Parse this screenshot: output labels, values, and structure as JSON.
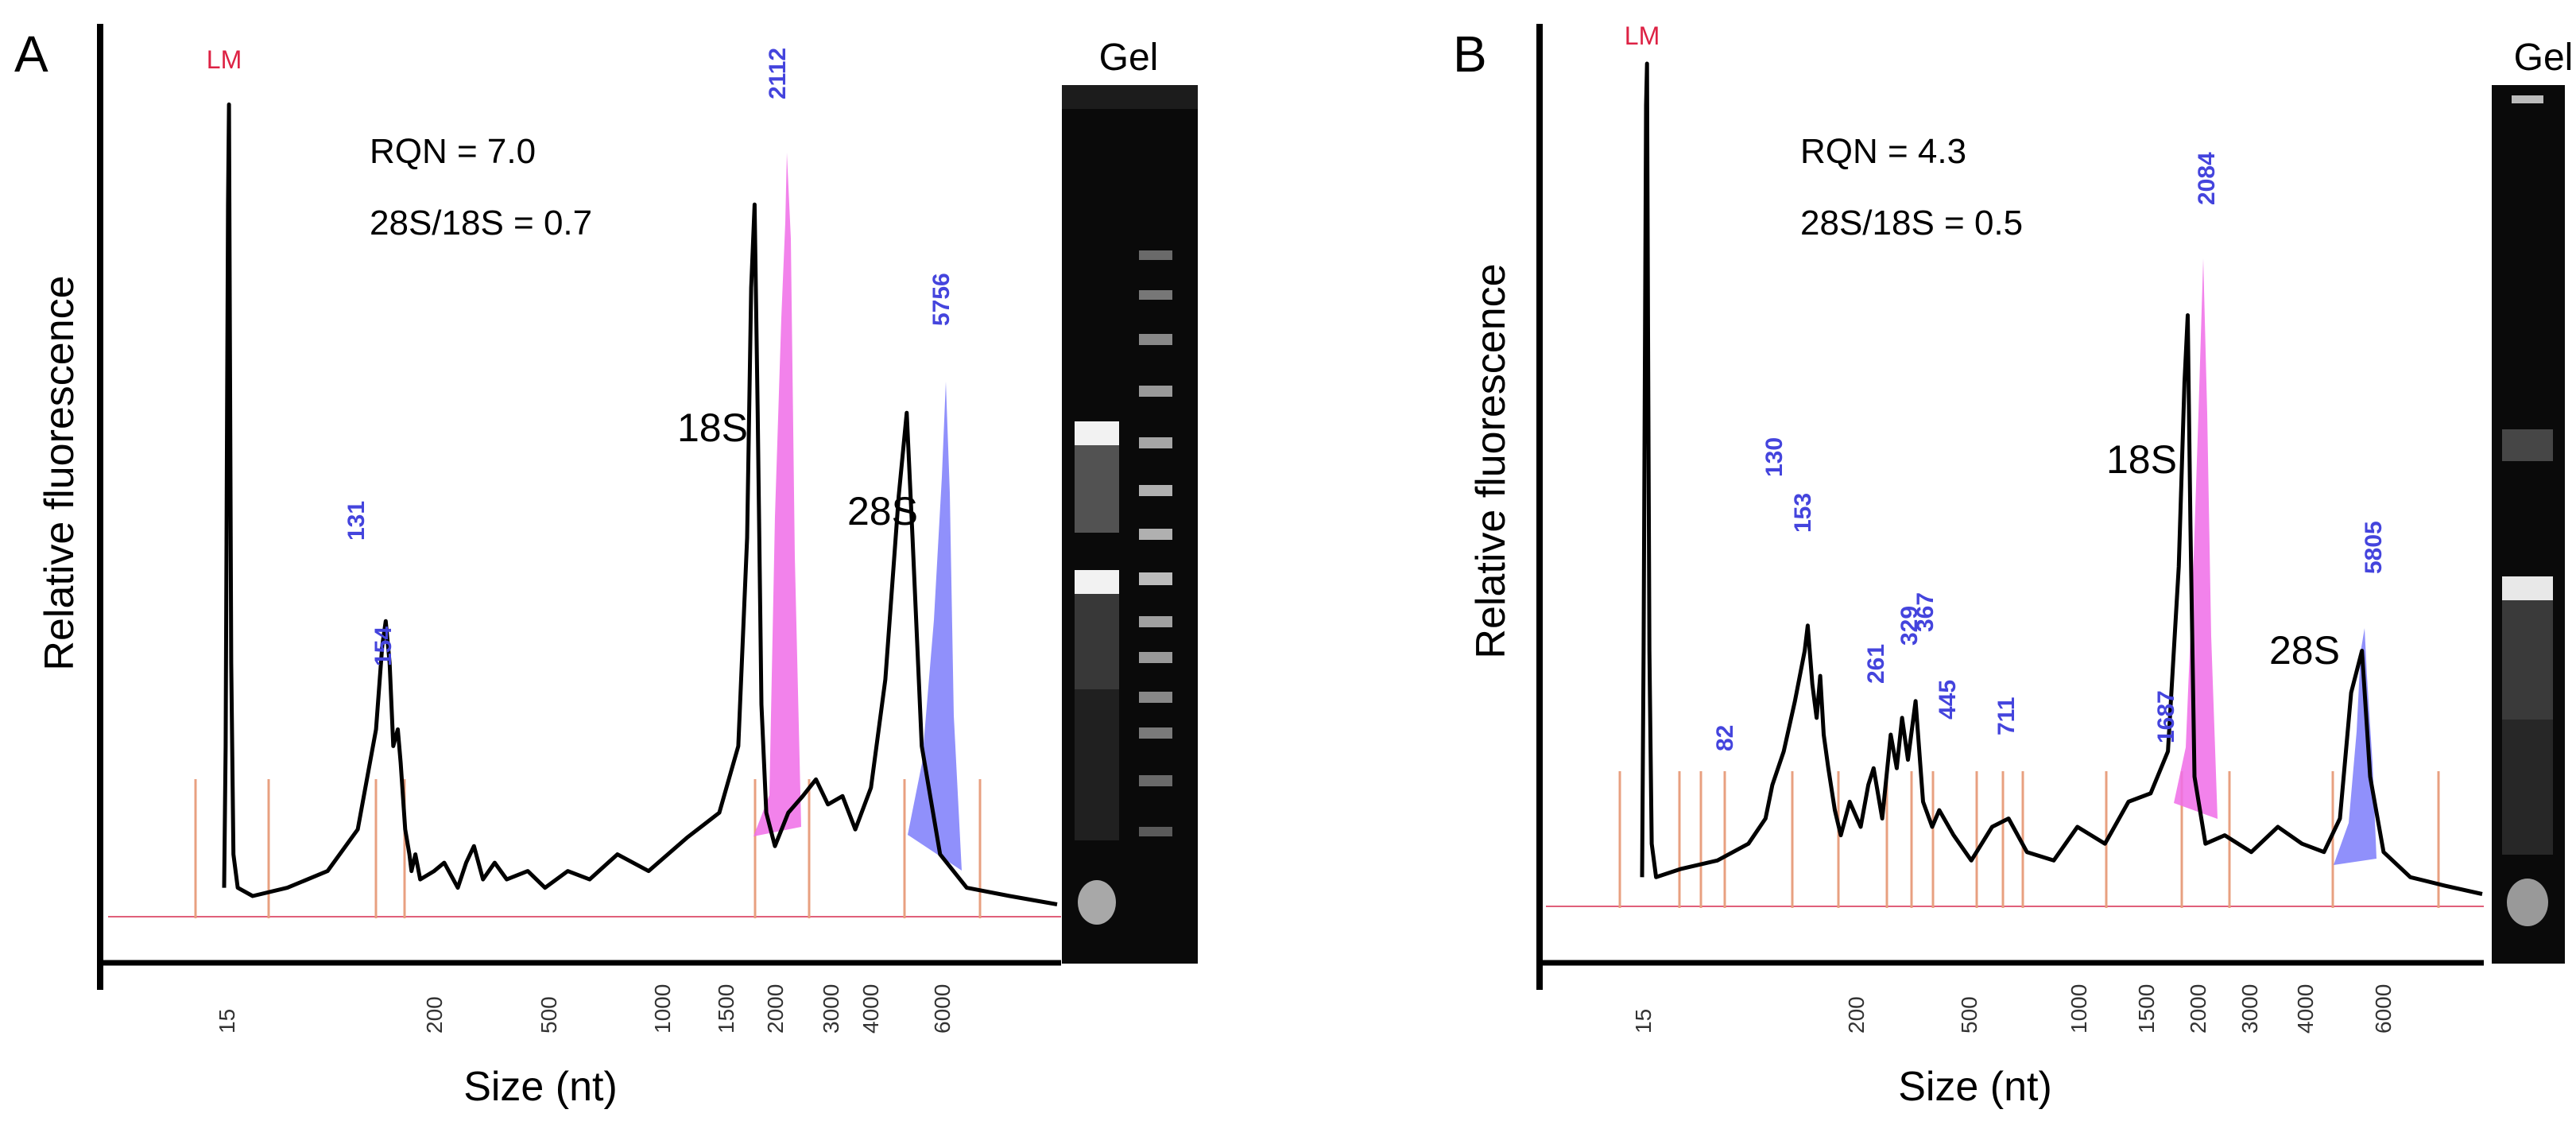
{
  "chart_data": [
    {
      "type": "line",
      "panel": "A",
      "ylabel": "Relative fluorescence",
      "xlabel": "Size (nt)",
      "x_ticks": [
        "15",
        "200",
        "500",
        "1000",
        "1500",
        "2000",
        "3000",
        "4000",
        "6000"
      ],
      "marker_label": "LM",
      "rqn_text": "RQN = 7.0",
      "ratio_text": "28S/18S = 0.7",
      "gel_title": "Gel",
      "peak_18s_label": "18S",
      "peak_28s_label": "28S",
      "peak_labels": [
        "131",
        "154",
        "2112",
        "5756"
      ],
      "trace": [
        [
          15,
          0.03
        ],
        [
          15.3,
          0.2
        ],
        [
          15.6,
          0.6
        ],
        [
          15.8,
          0.85
        ],
        [
          16,
          0.97
        ],
        [
          16.2,
          0.7
        ],
        [
          16.5,
          0.3
        ],
        [
          17,
          0.07
        ],
        [
          18,
          0.03
        ],
        [
          22,
          0.02
        ],
        [
          35,
          0.03
        ],
        [
          60,
          0.05
        ],
        [
          90,
          0.1
        ],
        [
          115,
          0.22
        ],
        [
          125,
          0.32
        ],
        [
          131,
          0.35
        ],
        [
          138,
          0.3
        ],
        [
          145,
          0.2
        ],
        [
          154,
          0.22
        ],
        [
          160,
          0.18
        ],
        [
          170,
          0.1
        ],
        [
          180,
          0.07
        ],
        [
          185,
          0.05
        ],
        [
          195,
          0.07
        ],
        [
          205,
          0.04
        ],
        [
          230,
          0.05
        ],
        [
          250,
          0.06
        ],
        [
          280,
          0.03
        ],
        [
          300,
          0.06
        ],
        [
          320,
          0.08
        ],
        [
          345,
          0.04
        ],
        [
          380,
          0.06
        ],
        [
          420,
          0.04
        ],
        [
          500,
          0.05
        ],
        [
          560,
          0.03
        ],
        [
          650,
          0.05
        ],
        [
          750,
          0.04
        ],
        [
          900,
          0.07
        ],
        [
          1100,
          0.05
        ],
        [
          1400,
          0.09
        ],
        [
          1700,
          0.12
        ],
        [
          1900,
          0.2
        ],
        [
          2000,
          0.45
        ],
        [
          2060,
          0.75
        ],
        [
          2112,
          0.85
        ],
        [
          2160,
          0.6
        ],
        [
          2220,
          0.25
        ],
        [
          2300,
          0.12
        ],
        [
          2450,
          0.08
        ],
        [
          2700,
          0.12
        ],
        [
          3000,
          0.14
        ],
        [
          3300,
          0.16
        ],
        [
          3600,
          0.13
        ],
        [
          4000,
          0.14
        ],
        [
          4300,
          0.1
        ],
        [
          4700,
          0.15
        ],
        [
          5100,
          0.28
        ],
        [
          5500,
          0.5
        ],
        [
          5756,
          0.6
        ],
        [
          5950,
          0.45
        ],
        [
          6200,
          0.2
        ],
        [
          6700,
          0.07
        ],
        [
          7500,
          0.03
        ],
        [
          9000,
          0.02
        ],
        [
          11000,
          0.01
        ]
      ]
    },
    {
      "type": "line",
      "panel": "B",
      "ylabel": "Relative fluorescence",
      "xlabel": "Size (nt)",
      "x_ticks": [
        "15",
        "200",
        "500",
        "1000",
        "1500",
        "2000",
        "3000",
        "4000",
        "6000"
      ],
      "marker_label": "LM",
      "rqn_text": "RQN = 4.3",
      "ratio_text": "28S/18S = 0.5",
      "gel_title": "Gel",
      "peak_18s_label": "18S",
      "peak_28s_label": "28S",
      "peak_labels": [
        "82",
        "130",
        "153",
        "261",
        "329",
        "367",
        "445",
        "711",
        "1687",
        "2084",
        "5805"
      ],
      "trace": [
        [
          15,
          0.03
        ],
        [
          15.3,
          0.3
        ],
        [
          15.6,
          0.7
        ],
        [
          15.8,
          0.95
        ],
        [
          16,
          1.0
        ],
        [
          16.2,
          0.7
        ],
        [
          16.5,
          0.3
        ],
        [
          17,
          0.07
        ],
        [
          18,
          0.03
        ],
        [
          25,
          0.04
        ],
        [
          40,
          0.05
        ],
        [
          60,
          0.07
        ],
        [
          75,
          0.1
        ],
        [
          82,
          0.14
        ],
        [
          95,
          0.18
        ],
        [
          110,
          0.24
        ],
        [
          125,
          0.3
        ],
        [
          130,
          0.33
        ],
        [
          138,
          0.26
        ],
        [
          146,
          0.22
        ],
        [
          153,
          0.27
        ],
        [
          160,
          0.2
        ],
        [
          170,
          0.16
        ],
        [
          185,
          0.11
        ],
        [
          200,
          0.08
        ],
        [
          215,
          0.12
        ],
        [
          235,
          0.09
        ],
        [
          250,
          0.14
        ],
        [
          261,
          0.16
        ],
        [
          280,
          0.1
        ],
        [
          300,
          0.2
        ],
        [
          315,
          0.16
        ],
        [
          329,
          0.22
        ],
        [
          345,
          0.17
        ],
        [
          367,
          0.24
        ],
        [
          390,
          0.12
        ],
        [
          420,
          0.09
        ],
        [
          445,
          0.11
        ],
        [
          500,
          0.08
        ],
        [
          560,
          0.05
        ],
        [
          640,
          0.09
        ],
        [
          711,
          0.1
        ],
        [
          800,
          0.06
        ],
        [
          950,
          0.05
        ],
        [
          1100,
          0.09
        ],
        [
          1300,
          0.07
        ],
        [
          1500,
          0.12
        ],
        [
          1687,
          0.13
        ],
        [
          1850,
          0.18
        ],
        [
          1960,
          0.4
        ],
        [
          2030,
          0.62
        ],
        [
          2084,
          0.7
        ],
        [
          2130,
          0.45
        ],
        [
          2200,
          0.15
        ],
        [
          2400,
          0.07
        ],
        [
          2800,
          0.08
        ],
        [
          3300,
          0.06
        ],
        [
          3800,
          0.09
        ],
        [
          4300,
          0.07
        ],
        [
          4800,
          0.06
        ],
        [
          5200,
          0.1
        ],
        [
          5500,
          0.25
        ],
        [
          5805,
          0.3
        ],
        [
          6050,
          0.15
        ],
        [
          6500,
          0.06
        ],
        [
          7500,
          0.03
        ],
        [
          9000,
          0.02
        ],
        [
          11000,
          0.01
        ]
      ]
    }
  ]
}
